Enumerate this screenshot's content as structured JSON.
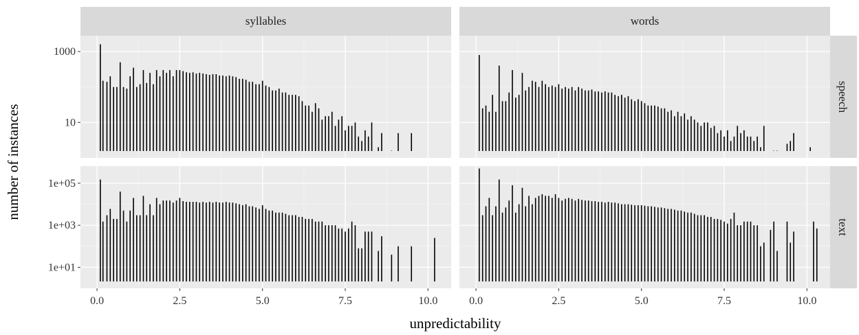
{
  "chart_data": {
    "type": "bar",
    "x_label": "unpredictability",
    "y_label": "number of instances",
    "x_ticks": [
      "0.0",
      "2.5",
      "5.0",
      "7.5",
      "10.0"
    ],
    "x_tick_values": [
      0,
      2.5,
      5,
      7.5,
      10
    ],
    "xlim": [
      -0.5,
      10.7
    ],
    "column_facets": [
      "syllables",
      "words"
    ],
    "row_facets": [
      "speech",
      "text"
    ],
    "y_scale": "log10",
    "rows": {
      "speech": {
        "ylim": [
          1,
          2800
        ],
        "y_ticks": [
          "10",
          "1000"
        ],
        "y_tick_values": [
          10,
          1000
        ]
      },
      "text": {
        "ylim": [
          1,
          650000
        ],
        "y_ticks": [
          "1e+01",
          "1e+03",
          "1e+05"
        ],
        "y_tick_values": [
          10,
          1000,
          100000
        ]
      }
    },
    "grid": true,
    "legend": "none",
    "colors": {
      "panel_bg": "#ebebeb",
      "strip_bg": "#d9d9d9",
      "grid_major": "#ffffff",
      "bar": "#000000"
    },
    "panels": [
      {
        "column": "syllables",
        "row": "speech",
        "x": [
          0.1,
          0.18,
          0.3,
          0.4,
          0.5,
          0.6,
          0.7,
          0.8,
          0.9,
          1.0,
          1.1,
          1.2,
          1.3,
          1.4,
          1.5,
          1.6,
          1.7,
          1.8,
          1.9,
          2.0,
          2.1,
          2.2,
          2.3,
          2.4,
          2.5,
          2.6,
          2.7,
          2.8,
          2.9,
          3.0,
          3.1,
          3.2,
          3.3,
          3.4,
          3.5,
          3.6,
          3.7,
          3.8,
          3.9,
          4.0,
          4.1,
          4.2,
          4.3,
          4.4,
          4.5,
          4.6,
          4.7,
          4.8,
          4.9,
          5.0,
          5.1,
          5.2,
          5.3,
          5.4,
          5.5,
          5.6,
          5.7,
          5.8,
          5.9,
          6.0,
          6.1,
          6.2,
          6.3,
          6.4,
          6.5,
          6.6,
          6.7,
          6.8,
          6.9,
          7.0,
          7.1,
          7.2,
          7.3,
          7.4,
          7.5,
          7.6,
          7.7,
          7.8,
          7.9,
          8.0,
          8.1,
          8.2,
          8.3,
          8.5,
          8.6,
          8.9,
          9.1,
          9.5
        ],
        "y": [
          1600,
          150,
          140,
          200,
          100,
          100,
          500,
          100,
          90,
          200,
          350,
          100,
          120,
          300,
          130,
          250,
          120,
          300,
          200,
          300,
          250,
          300,
          200,
          300,
          300,
          280,
          260,
          250,
          260,
          240,
          250,
          240,
          230,
          220,
          230,
          230,
          210,
          210,
          200,
          210,
          200,
          190,
          170,
          170,
          160,
          140,
          140,
          120,
          120,
          150,
          110,
          100,
          80,
          80,
          90,
          70,
          70,
          60,
          60,
          60,
          55,
          40,
          30,
          30,
          20,
          35,
          25,
          12,
          15,
          15,
          20,
          8,
          12,
          15,
          6,
          8,
          8,
          10,
          4,
          3,
          6,
          4,
          10,
          2,
          5,
          1.6,
          5,
          5
        ]
      },
      {
        "column": "words",
        "row": "speech",
        "x": [
          0.1,
          0.2,
          0.3,
          0.4,
          0.5,
          0.6,
          0.7,
          0.8,
          0.9,
          1.0,
          1.1,
          1.2,
          1.3,
          1.4,
          1.5,
          1.6,
          1.7,
          1.8,
          1.9,
          2.0,
          2.1,
          2.2,
          2.3,
          2.4,
          2.5,
          2.6,
          2.7,
          2.8,
          2.9,
          3.0,
          3.1,
          3.2,
          3.3,
          3.4,
          3.5,
          3.6,
          3.7,
          3.8,
          3.9,
          4.0,
          4.1,
          4.2,
          4.3,
          4.4,
          4.5,
          4.6,
          4.7,
          4.8,
          4.9,
          5.0,
          5.1,
          5.2,
          5.3,
          5.4,
          5.5,
          5.6,
          5.7,
          5.8,
          5.9,
          6.0,
          6.1,
          6.2,
          6.3,
          6.4,
          6.5,
          6.6,
          6.7,
          6.8,
          6.9,
          7.0,
          7.1,
          7.2,
          7.3,
          7.4,
          7.5,
          7.6,
          7.7,
          7.8,
          7.9,
          8.0,
          8.1,
          8.2,
          8.3,
          8.4,
          8.5,
          8.6,
          8.7,
          9.0,
          9.1,
          9.4,
          9.5,
          9.6,
          10.1
        ],
        "y": [
          800,
          25,
          30,
          20,
          60,
          20,
          400,
          40,
          40,
          70,
          300,
          50,
          60,
          250,
          80,
          100,
          150,
          140,
          100,
          150,
          120,
          100,
          110,
          100,
          120,
          90,
          100,
          90,
          100,
          80,
          100,
          90,
          80,
          80,
          85,
          75,
          75,
          70,
          75,
          70,
          70,
          60,
          55,
          60,
          50,
          55,
          45,
          40,
          45,
          40,
          35,
          30,
          30,
          30,
          28,
          25,
          25,
          20,
          22,
          15,
          20,
          15,
          18,
          12,
          15,
          12,
          10,
          8,
          10,
          10,
          7,
          8,
          5,
          6,
          4,
          6,
          3,
          4,
          8,
          5,
          6,
          4,
          4,
          3,
          4,
          2,
          8,
          1.6,
          1.6,
          2.5,
          3,
          5,
          2
        ]
      },
      {
        "column": "syllables",
        "row": "text",
        "x": [
          0.1,
          0.18,
          0.3,
          0.4,
          0.5,
          0.6,
          0.7,
          0.8,
          0.9,
          1.0,
          1.1,
          1.2,
          1.3,
          1.4,
          1.5,
          1.6,
          1.7,
          1.8,
          1.9,
          2.0,
          2.1,
          2.2,
          2.3,
          2.4,
          2.5,
          2.6,
          2.7,
          2.8,
          2.9,
          3.0,
          3.1,
          3.2,
          3.3,
          3.4,
          3.5,
          3.6,
          3.7,
          3.8,
          3.9,
          4.0,
          4.1,
          4.2,
          4.3,
          4.4,
          4.5,
          4.6,
          4.7,
          4.8,
          4.9,
          5.0,
          5.1,
          5.2,
          5.3,
          5.4,
          5.5,
          5.6,
          5.7,
          5.8,
          5.9,
          6.0,
          6.1,
          6.2,
          6.3,
          6.4,
          6.5,
          6.6,
          6.7,
          6.8,
          6.9,
          7.0,
          7.1,
          7.2,
          7.3,
          7.4,
          7.5,
          7.6,
          7.7,
          7.8,
          7.9,
          8.0,
          8.1,
          8.2,
          8.3,
          8.5,
          8.6,
          8.9,
          9.1,
          9.5,
          10.2
        ],
        "y": [
          150000,
          1500,
          3000,
          6000,
          2000,
          2000,
          40000,
          5000,
          1500,
          5000,
          20000,
          3000,
          3000,
          25000,
          3000,
          10000,
          3000,
          20000,
          10000,
          15000,
          15000,
          15000,
          12000,
          15000,
          20000,
          14000,
          13000,
          13000,
          13000,
          13000,
          12000,
          13000,
          12000,
          13000,
          12000,
          13000,
          12000,
          12000,
          13000,
          12000,
          12000,
          11000,
          10000,
          9000,
          10000,
          8000,
          8000,
          7000,
          6000,
          9000,
          6000,
          5000,
          5000,
          4000,
          4000,
          4000,
          3500,
          3000,
          3000,
          3000,
          2500,
          2500,
          2000,
          2000,
          2000,
          1500,
          1500,
          1500,
          1000,
          1000,
          1000,
          1000,
          700,
          700,
          500,
          700,
          1500,
          1000,
          80,
          80,
          500,
          500,
          500,
          60,
          300,
          40,
          100,
          100,
          250
        ]
      },
      {
        "column": "words",
        "row": "text",
        "x": [
          0.1,
          0.2,
          0.3,
          0.4,
          0.5,
          0.6,
          0.7,
          0.8,
          0.9,
          1.0,
          1.1,
          1.2,
          1.3,
          1.4,
          1.5,
          1.6,
          1.7,
          1.8,
          1.9,
          2.0,
          2.1,
          2.2,
          2.3,
          2.4,
          2.5,
          2.6,
          2.7,
          2.8,
          2.9,
          3.0,
          3.1,
          3.2,
          3.3,
          3.4,
          3.5,
          3.6,
          3.7,
          3.8,
          3.9,
          4.0,
          4.1,
          4.2,
          4.3,
          4.4,
          4.5,
          4.6,
          4.7,
          4.8,
          4.9,
          5.0,
          5.1,
          5.2,
          5.3,
          5.4,
          5.5,
          5.6,
          5.7,
          5.8,
          5.9,
          6.0,
          6.1,
          6.2,
          6.3,
          6.4,
          6.5,
          6.6,
          6.7,
          6.8,
          6.9,
          7.0,
          7.1,
          7.2,
          7.3,
          7.4,
          7.5,
          7.6,
          7.7,
          7.8,
          7.9,
          8.0,
          8.1,
          8.2,
          8.3,
          8.4,
          8.5,
          8.6,
          8.7,
          8.9,
          9.0,
          9.1,
          9.4,
          9.5,
          9.6,
          10.2,
          10.3
        ],
        "y": [
          500000,
          3000,
          8000,
          20000,
          3000,
          8000,
          150000,
          4000,
          7000,
          15000,
          80000,
          4000,
          10000,
          60000,
          8000,
          25000,
          10000,
          20000,
          25000,
          30000,
          25000,
          25000,
          20000,
          30000,
          20000,
          15000,
          18000,
          20000,
          18000,
          15000,
          18000,
          16000,
          15000,
          15000,
          14000,
          14000,
          13000,
          13000,
          12000,
          13000,
          12000,
          12000,
          11000,
          10000,
          10000,
          10000,
          9500,
          9000,
          9000,
          9000,
          8500,
          8000,
          8000,
          7500,
          7000,
          7000,
          6500,
          6000,
          6000,
          5500,
          5000,
          5000,
          4500,
          4000,
          4000,
          3500,
          3000,
          3000,
          3000,
          2500,
          2500,
          2000,
          2000,
          1800,
          1500,
          1200,
          2000,
          4000,
          1000,
          1000,
          1500,
          1500,
          1500,
          1000,
          1000,
          100,
          150,
          600,
          1500,
          60,
          1500,
          150,
          500,
          1500,
          700
        ]
      }
    ]
  }
}
